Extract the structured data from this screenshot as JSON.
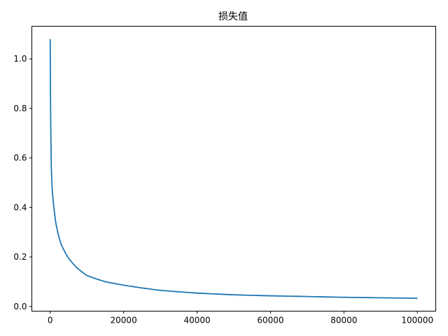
{
  "chart_data": {
    "type": "line",
    "title": "损失值",
    "xlabel": "",
    "ylabel": "",
    "xlim": [
      -5000,
      105000
    ],
    "ylim": [
      -0.019,
      1.132
    ],
    "xticks": [
      0,
      20000,
      40000,
      60000,
      80000,
      100000
    ],
    "xtick_labels": [
      "0",
      "20000",
      "40000",
      "60000",
      "80000",
      "100000"
    ],
    "yticks": [
      0.0,
      0.2,
      0.4,
      0.6,
      0.8,
      1.0
    ],
    "ytick_labels": [
      "0.0",
      "0.2",
      "0.4",
      "0.6",
      "0.8",
      "1.0"
    ],
    "grid": false,
    "color": "#1f77b4",
    "series": [
      {
        "x": [
          0,
          100,
          300,
          600,
          1000,
          1500,
          2200,
          3000,
          4750,
          7000,
          10000,
          15000,
          20000,
          30000,
          40000,
          50000,
          60000,
          70000,
          80000,
          90000,
          100000
        ],
        "y": [
          1.08,
          0.8,
          0.56,
          0.46,
          0.4,
          0.34,
          0.29,
          0.25,
          0.2,
          0.16,
          0.125,
          0.1,
          0.086,
          0.065,
          0.054,
          0.047,
          0.043,
          0.04,
          0.037,
          0.035,
          0.033
        ]
      }
    ]
  }
}
